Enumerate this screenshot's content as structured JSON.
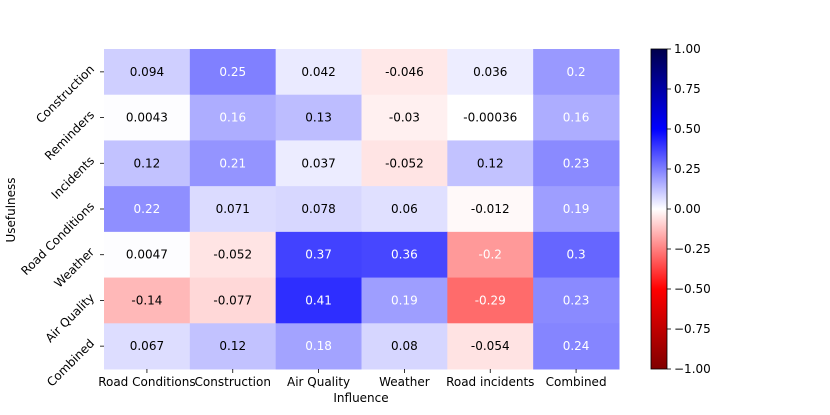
{
  "chart_data": {
    "type": "heatmap",
    "xlabel": "Influence",
    "ylabel": "Usefulness",
    "x_categories": [
      "Road Conditions",
      "Construction",
      "Air Quality",
      "Weather",
      "Road incidents",
      "Combined"
    ],
    "y_categories": [
      "Construction",
      "Reminders",
      "Incidents",
      "Road Conditions",
      "Weather",
      "Air Quality",
      "Combined"
    ],
    "values": [
      [
        0.094,
        0.25,
        0.042,
        -0.046,
        0.036,
        0.2
      ],
      [
        0.0043,
        0.16,
        0.13,
        -0.03,
        -0.00036,
        0.16
      ],
      [
        0.12,
        0.21,
        0.037,
        -0.052,
        0.12,
        0.23
      ],
      [
        0.22,
        0.071,
        0.078,
        0.06,
        -0.012,
        0.19
      ],
      [
        0.0047,
        -0.052,
        0.37,
        0.36,
        -0.2,
        0.3
      ],
      [
        -0.14,
        -0.077,
        0.41,
        0.19,
        -0.29,
        0.23
      ],
      [
        0.067,
        0.12,
        0.18,
        0.08,
        -0.054,
        0.24
      ]
    ],
    "cell_labels": [
      [
        "0.094",
        "0.25",
        "0.042",
        "-0.046",
        "0.036",
        "0.2"
      ],
      [
        "0.0043",
        "0.16",
        "0.13",
        "-0.03",
        "-0.00036",
        "0.16"
      ],
      [
        "0.12",
        "0.21",
        "0.037",
        "-0.052",
        "0.12",
        "0.23"
      ],
      [
        "0.22",
        "0.071",
        "0.078",
        "0.06",
        "-0.012",
        "0.19"
      ],
      [
        "0.0047",
        "-0.052",
        "0.37",
        "0.36",
        "-0.2",
        "0.3"
      ],
      [
        "-0.14",
        "-0.077",
        "0.41",
        "0.19",
        "-0.29",
        "0.23"
      ],
      [
        "0.067",
        "0.12",
        "0.18",
        "0.08",
        "-0.054",
        "0.24"
      ]
    ],
    "colormap": "seismic_r",
    "vmin": -1.0,
    "vmax": 1.0,
    "colorbar_ticks": [
      1.0,
      0.75,
      0.5,
      0.25,
      0.0,
      -0.25,
      -0.5,
      -0.75,
      -1.0
    ],
    "colorbar_tick_labels": [
      "1.00",
      "0.75",
      "0.50",
      "0.25",
      "0.00",
      "−0.25",
      "−0.50",
      "−0.75",
      "−1.00"
    ],
    "legend_position": "right"
  },
  "colors": {
    "text_dark": "#000000",
    "text_light": "#ffffff",
    "axis": "#000000"
  }
}
